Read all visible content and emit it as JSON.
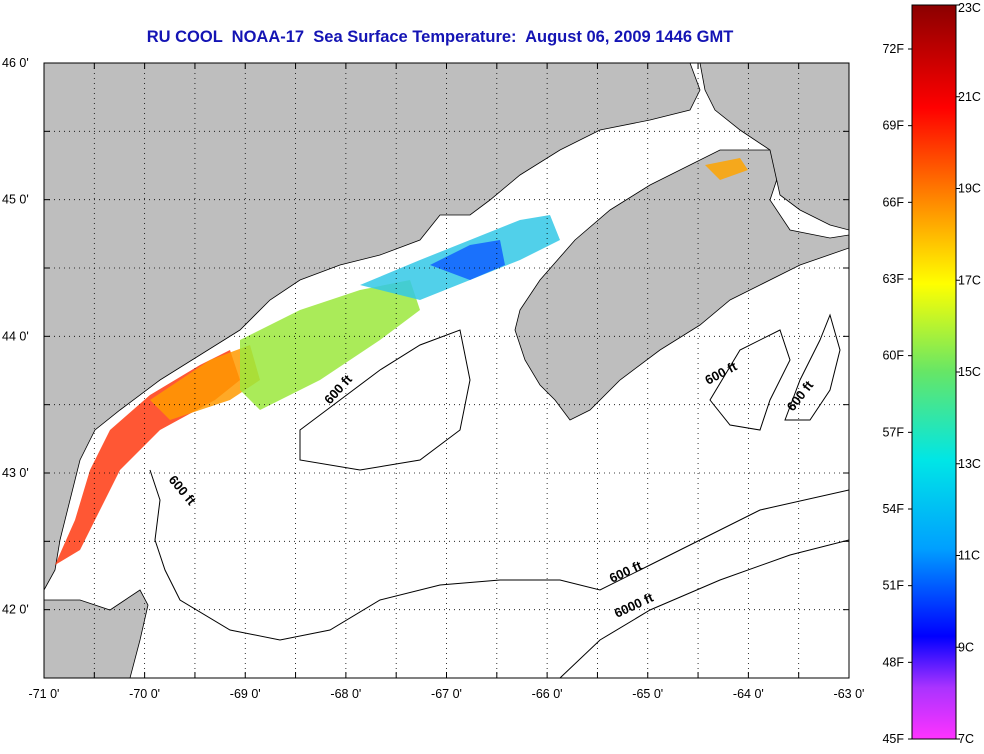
{
  "title": "RU COOL  NOAA-17  Sea Surface Temperature:  August 06, 2009 1446 GMT",
  "map": {
    "lon_range": [
      -71,
      -63
    ],
    "lat_range": [
      41.5,
      46
    ],
    "lon_ticks": [
      "-71 0'",
      "-70 0'",
      "-69 0'",
      "-68 0'",
      "-67 0'",
      "-66 0'",
      "-65 0'",
      "-64 0'",
      "-63 0'"
    ],
    "lat_ticks": [
      "42 0'",
      "43 0'",
      "44 0'",
      "45 0'",
      "46 0'"
    ],
    "land_color": "#bebebe",
    "contour_labels": [
      {
        "text": "600 ft"
      },
      {
        "text": "600 ft"
      },
      {
        "text": "600 ft"
      },
      {
        "text": "600 ft"
      },
      {
        "text": "600 ft"
      },
      {
        "text": "6000 ft"
      }
    ]
  },
  "colorbar": {
    "celsius_labels": [
      "23C",
      "21C",
      "19C",
      "17C",
      "15C",
      "13C",
      "11C",
      "9C",
      "7C"
    ],
    "fahrenheit_labels": [
      "72F",
      "69F",
      "66F",
      "63F",
      "60F",
      "57F",
      "54F",
      "51F",
      "48F",
      "45F"
    ],
    "stops": [
      "#8b0000",
      "#ff0000",
      "#ff8c00",
      "#ffff00",
      "#66e666",
      "#00e6e6",
      "#00a0ff",
      "#0000ff",
      "#aa33ff",
      "#ff33ff"
    ]
  }
}
